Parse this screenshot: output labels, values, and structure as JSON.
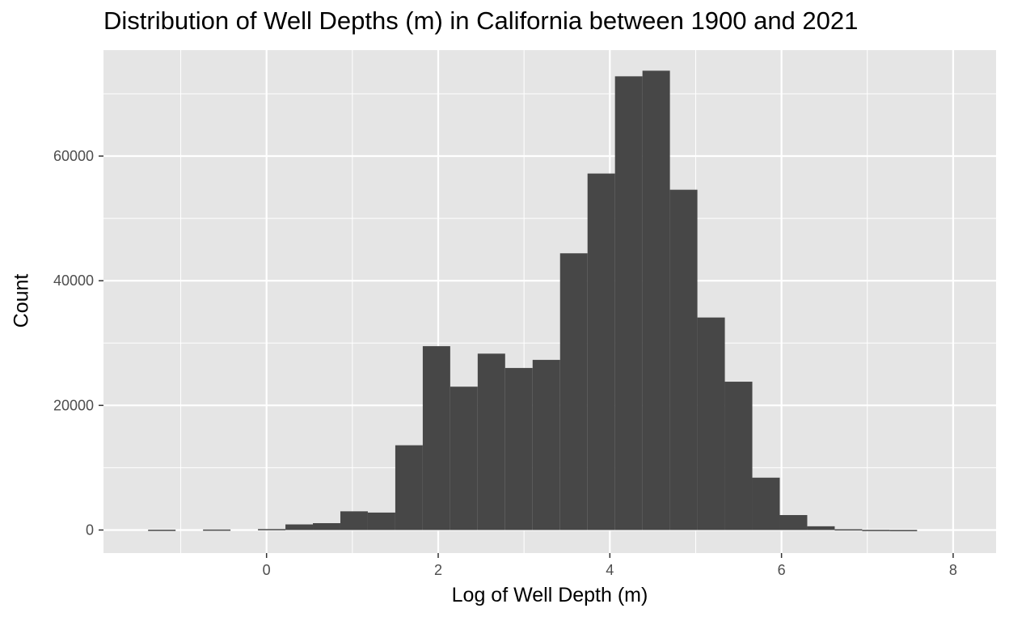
{
  "chart_data": {
    "type": "bar",
    "title": "Distribution of Well Depths (m) in California between 1900 and 2021",
    "xlabel": "Log of Well Depth (m)",
    "ylabel": "Count",
    "bin_width": 0.32,
    "bins": [
      {
        "x0": -1.38,
        "x1": -1.06,
        "count": 50
      },
      {
        "x0": -1.06,
        "x1": -0.74,
        "count": 0
      },
      {
        "x0": -0.74,
        "x1": -0.42,
        "count": 80
      },
      {
        "x0": -0.42,
        "x1": -0.1,
        "count": 0
      },
      {
        "x0": -0.1,
        "x1": 0.22,
        "count": 150
      },
      {
        "x0": 0.22,
        "x1": 0.54,
        "count": 900
      },
      {
        "x0": 0.54,
        "x1": 0.86,
        "count": 1100
      },
      {
        "x0": 0.86,
        "x1": 1.18,
        "count": 3000
      },
      {
        "x0": 1.18,
        "x1": 1.5,
        "count": 2800
      },
      {
        "x0": 1.5,
        "x1": 1.82,
        "count": 13600
      },
      {
        "x0": 1.82,
        "x1": 2.14,
        "count": 29500
      },
      {
        "x0": 2.14,
        "x1": 2.46,
        "count": 23000
      },
      {
        "x0": 2.46,
        "x1": 2.78,
        "count": 28300
      },
      {
        "x0": 2.78,
        "x1": 3.1,
        "count": 26000
      },
      {
        "x0": 3.1,
        "x1": 3.42,
        "count": 27300
      },
      {
        "x0": 3.42,
        "x1": 3.74,
        "count": 44400
      },
      {
        "x0": 3.74,
        "x1": 4.06,
        "count": 57200
      },
      {
        "x0": 4.06,
        "x1": 4.38,
        "count": 72800
      },
      {
        "x0": 4.38,
        "x1": 4.7,
        "count": 73700
      },
      {
        "x0": 4.7,
        "x1": 5.02,
        "count": 54600
      },
      {
        "x0": 5.02,
        "x1": 5.34,
        "count": 34100
      },
      {
        "x0": 5.34,
        "x1": 5.66,
        "count": 23800
      },
      {
        "x0": 5.66,
        "x1": 5.98,
        "count": 8400
      },
      {
        "x0": 5.98,
        "x1": 6.3,
        "count": 2400
      },
      {
        "x0": 6.3,
        "x1": 6.62,
        "count": 600
      },
      {
        "x0": 6.62,
        "x1": 6.94,
        "count": 120
      },
      {
        "x0": 6.94,
        "x1": 7.26,
        "count": 30
      },
      {
        "x0": 7.26,
        "x1": 7.58,
        "count": 10
      }
    ],
    "xlim": [
      -1.9,
      8.5
    ],
    "ylim": [
      -3700,
      77000
    ],
    "x_ticks": [
      0,
      2,
      4,
      6,
      8
    ],
    "x_tick_labels": [
      "0",
      "2",
      "4",
      "6",
      "8"
    ],
    "x_minor_ticks": [
      -1,
      1,
      3,
      5,
      7
    ],
    "y_ticks": [
      0,
      20000,
      40000,
      60000
    ],
    "y_tick_labels": [
      "0",
      "20000",
      "40000",
      "60000"
    ],
    "y_minor_ticks": [
      10000,
      30000,
      50000,
      70000
    ],
    "grid": true,
    "colors": {
      "panel_background": "#e5e5e5",
      "grid_line": "#ffffff",
      "bar_fill": "#474747",
      "tick_text": "#4d4d4d",
      "tick_mark": "#333333"
    }
  }
}
